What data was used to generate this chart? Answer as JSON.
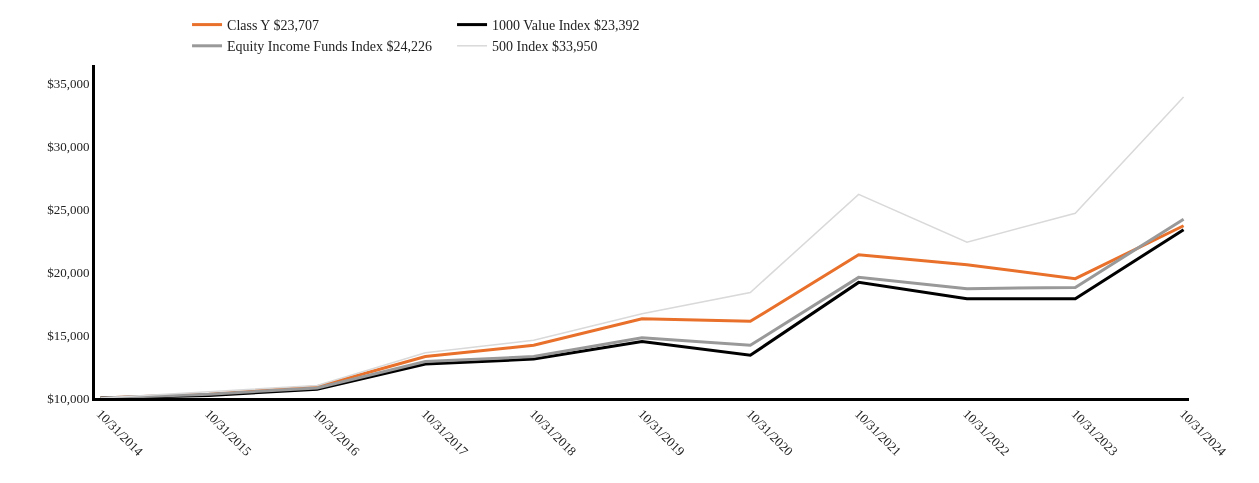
{
  "chart_data": {
    "type": "line",
    "categories": [
      "10/31/2014",
      "10/31/2015",
      "10/31/2016",
      "10/31/2017",
      "10/31/2018",
      "10/31/2019",
      "10/31/2020",
      "10/31/2021",
      "10/31/2022",
      "10/31/2023",
      "10/31/2024"
    ],
    "series": [
      {
        "name": "Class Y $23,707",
        "color": "#e8702a",
        "values": [
          10000,
          10300,
          10900,
          13300,
          14200,
          16300,
          16100,
          21400,
          20600,
          19500,
          23707
        ]
      },
      {
        "name": "1000 Value Index $23,392",
        "color": "#000000",
        "values": [
          10000,
          10200,
          10700,
          12700,
          13100,
          14500,
          13400,
          19200,
          17900,
          17900,
          23392
        ]
      },
      {
        "name": "Equity Income Funds Index $24,226",
        "color": "#999999",
        "values": [
          10000,
          10300,
          10800,
          12900,
          13300,
          14800,
          14200,
          19600,
          18700,
          18800,
          24226
        ]
      },
      {
        "name": "500 Index $33,950",
        "color": "#d9d9d9",
        "values": [
          10000,
          10500,
          11000,
          13600,
          14600,
          16700,
          18400,
          26200,
          22400,
          24700,
          33950
        ]
      }
    ],
    "ylim": [
      10000,
      36500
    ],
    "yticks": [
      {
        "value": 10000,
        "label": "$10,000"
      },
      {
        "value": 15000,
        "label": "$15,000"
      },
      {
        "value": 20000,
        "label": "$20,000"
      },
      {
        "value": 25000,
        "label": "$25,000"
      },
      {
        "value": 30000,
        "label": "$30,000"
      },
      {
        "value": 35000,
        "label": "$35,000"
      }
    ],
    "legend": "top",
    "marker": "none",
    "line_style": "solid"
  }
}
